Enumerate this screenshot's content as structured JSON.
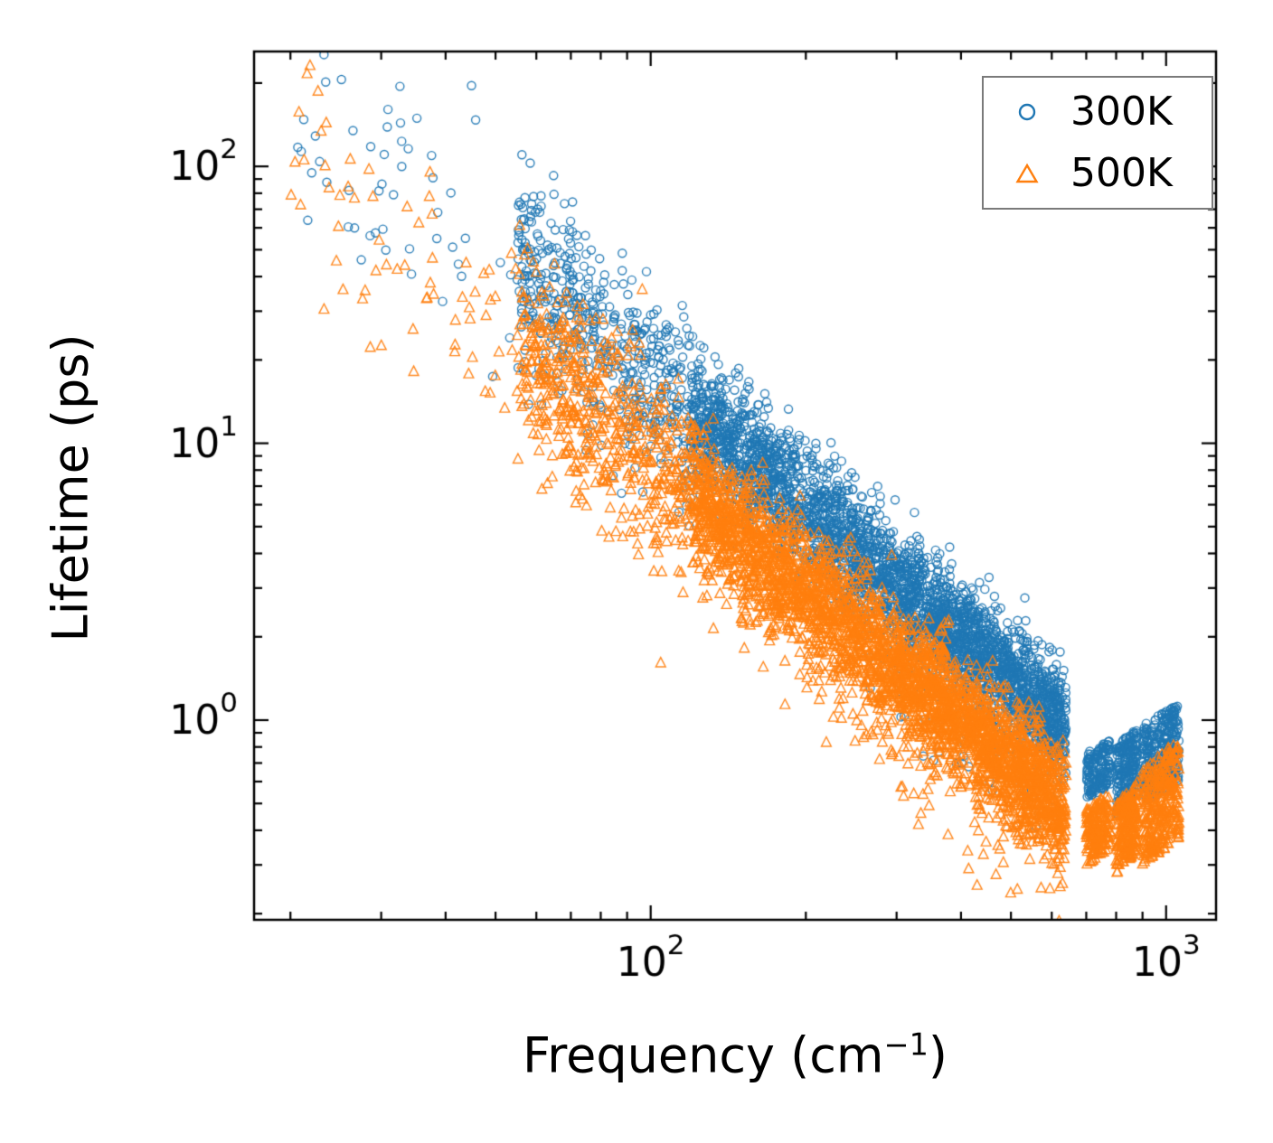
{
  "figure": {
    "ylabel": "Lifetime (ps)",
    "xlabel": {
      "prefix": "Frequency (cm",
      "sup": "−1",
      "suffix": ")"
    },
    "legend": [
      {
        "label": "300K",
        "color": "#1f77b4",
        "marker": "circle"
      },
      {
        "label": "500K",
        "color": "#ff7f0e",
        "marker": "triangle"
      }
    ]
  },
  "chart_data": {
    "type": "scatter",
    "title": "",
    "xlabel": "Frequency (cm^-1)",
    "ylabel": "Lifetime (ps)",
    "x_scale": "log",
    "y_scale": "log",
    "xlim": [
      17,
      1250
    ],
    "ylim": [
      0.19,
      260
    ],
    "x_ticks": {
      "values": [
        100,
        1000
      ],
      "labels": [
        "10^2",
        "10^3"
      ]
    },
    "y_ticks": {
      "values": [
        1,
        10,
        100
      ],
      "labels": [
        "10^0",
        "10^1",
        "10^2"
      ]
    },
    "grid": false,
    "legend_position": "upper right",
    "tick_direction": "in",
    "representation": "procedural-scatter",
    "seed": 12,
    "series": [
      {
        "name": "300K",
        "color": "#1f77b4",
        "marker": "circle",
        "trend": {
          "logA": 4.33,
          "slope": 1.55
        },
        "segments": [
          {
            "fmin": 20,
            "fmax": 60,
            "count": 60,
            "sigma": 0.22
          },
          {
            "fmin": 55,
            "fmax": 120,
            "count": 520,
            "sigma": 0.16
          },
          {
            "fmin": 120,
            "fmax": 300,
            "count": 1500,
            "sigma": 0.11,
            "outlier_frac": 0.04,
            "outlier_drop": 0.3
          },
          {
            "fmin": 300,
            "fmax": 640,
            "count": 1600,
            "sigma": 0.1,
            "outlier_frac": 0.05,
            "outlier_drop": 0.35
          }
        ],
        "clusters": [
          {
            "fmin": 700,
            "fmax": 780,
            "tmin": 0.52,
            "tmax": 0.85,
            "count": 170
          },
          {
            "fmin": 800,
            "fmax": 880,
            "tmin": 0.45,
            "tmax": 0.95,
            "count": 220
          },
          {
            "fmin": 900,
            "fmax": 1060,
            "tmin": 0.5,
            "tmax": 1.15,
            "count": 320
          }
        ]
      },
      {
        "name": "500K",
        "color": "#ff7f0e",
        "marker": "triangle",
        "trend": {
          "logA": 4.03,
          "slope": 1.55
        },
        "segments": [
          {
            "fmin": 20,
            "fmax": 60,
            "count": 70,
            "sigma": 0.22
          },
          {
            "fmin": 55,
            "fmax": 120,
            "count": 560,
            "sigma": 0.17
          },
          {
            "fmin": 120,
            "fmax": 300,
            "count": 1600,
            "sigma": 0.12,
            "outlier_frac": 0.05,
            "outlier_drop": 0.35
          },
          {
            "fmin": 300,
            "fmax": 640,
            "count": 1700,
            "sigma": 0.11,
            "outlier_frac": 0.06,
            "outlier_drop": 0.4
          }
        ],
        "clusters": [
          {
            "fmin": 700,
            "fmax": 780,
            "tmin": 0.3,
            "tmax": 0.55,
            "count": 180
          },
          {
            "fmin": 800,
            "fmax": 880,
            "tmin": 0.28,
            "tmax": 0.6,
            "count": 230
          },
          {
            "fmin": 900,
            "fmax": 1060,
            "tmin": 0.3,
            "tmax": 0.85,
            "count": 330
          }
        ]
      }
    ]
  }
}
